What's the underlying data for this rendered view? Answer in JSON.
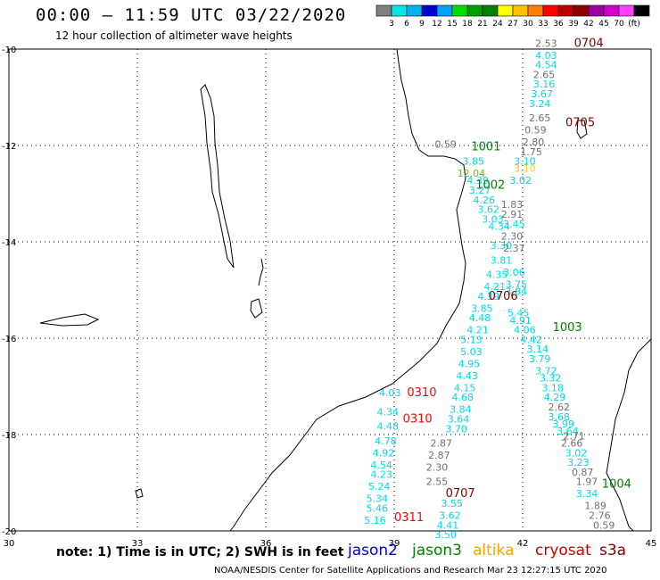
{
  "title": "00:00 – 11:59 UTC 03/22/2020",
  "subtitle": "12 hour collection of altimeter wave heights",
  "colorbar": {
    "colors": [
      "#808080",
      "#00e5e5",
      "#00b4f0",
      "#0000d0",
      "#00a0ff",
      "#00e000",
      "#00a000",
      "#008000",
      "#ffff00",
      "#ffc000",
      "#ff8000",
      "#ff0000",
      "#c00000",
      "#900000",
      "#a000a0",
      "#d000d0",
      "#ff40ff",
      "#000000"
    ],
    "labels": [
      "3",
      "6",
      "9",
      "12",
      "15",
      "18",
      "21",
      "24",
      "27",
      "30",
      "33",
      "36",
      "39",
      "42",
      "45",
      "70",
      "(ft)"
    ]
  },
  "axes": {
    "lon_ticks": [
      "30",
      "33",
      "36",
      "39",
      "42",
      "45"
    ],
    "lat_ticks": [
      "-10",
      "-12",
      "-14",
      "-16",
      "-18",
      "-20"
    ]
  },
  "legend": {
    "note": "note: 1) Time is in UTC; 2) SWH is in feet",
    "jason2": "jason2",
    "jason3": "jason3",
    "altika": "altika",
    "cryosat": "cryosat",
    "s3a": "s3a",
    "colors": {
      "jason2": "#0000d0",
      "jason3": "#008000",
      "altika": "#ffa000",
      "cryosat": "#cc0000",
      "s3a": "#800000"
    }
  },
  "credit": "NOAA/NESDIS Center for Satellite Applications and Research    Mar 23 12:27:15 UTC 2020",
  "passes": [
    {
      "label": "0704",
      "color": "#800000",
      "lon": 43.2,
      "lat": -9.95
    },
    {
      "label": "0705",
      "color": "#800000",
      "lon": 43.0,
      "lat": -11.6
    },
    {
      "label": "1001",
      "color": "#008000",
      "lon": 40.8,
      "lat": -12.1
    },
    {
      "label": "1002",
      "color": "#008000",
      "lon": 40.9,
      "lat": -12.9
    },
    {
      "label": "0706",
      "color": "#800000",
      "lon": 41.2,
      "lat": -15.2
    },
    {
      "label": "1003",
      "color": "#008000",
      "lon": 42.7,
      "lat": -15.85
    },
    {
      "label": "0310",
      "color": "#ff0000",
      "lon": 39.3,
      "lat": -17.2
    },
    {
      "label": "0310",
      "color": "#ff0000",
      "lon": 39.2,
      "lat": -17.75
    },
    {
      "label": "0707",
      "color": "#800000",
      "lon": 40.2,
      "lat": -19.3
    },
    {
      "label": "1004",
      "color": "#008000",
      "lon": 43.85,
      "lat": -19.1
    },
    {
      "label": "0311",
      "color": "#ff0000",
      "lon": 39.0,
      "lat": -19.8
    }
  ],
  "tracks": [
    {
      "id": "track-a",
      "color": "#00d8e8",
      "points": [
        {
          "v": "4.03",
          "lon": 42.55,
          "lat": -10.2
        },
        {
          "v": "4.54",
          "lon": 42.55,
          "lat": -10.4
        },
        {
          "v": "3.16",
          "lon": 42.5,
          "lat": -10.8
        },
        {
          "v": "3.67",
          "lon": 42.45,
          "lat": -11.0
        },
        {
          "v": "3.24",
          "lon": 42.4,
          "lat": -11.2
        },
        {
          "v": "3.10",
          "lon": 42.05,
          "lat": -12.4
        },
        {
          "v": "3.02",
          "lon": 41.95,
          "lat": -12.8
        },
        {
          "v": "3.45",
          "lon": 41.8,
          "lat": -13.7
        },
        {
          "v": "3.06",
          "lon": 41.8,
          "lat": -14.7
        },
        {
          "v": "3.75",
          "lon": 41.85,
          "lat": -14.95
        },
        {
          "v": "3.84",
          "lon": 41.85,
          "lat": -15.1
        },
        {
          "v": "5.45",
          "lon": 41.9,
          "lat": -15.55
        },
        {
          "v": "4.91",
          "lon": 41.95,
          "lat": -15.7
        },
        {
          "v": "4.06",
          "lon": 42.05,
          "lat": -15.9
        },
        {
          "v": "4.42",
          "lon": 42.2,
          "lat": -16.1
        },
        {
          "v": "3.14",
          "lon": 42.35,
          "lat": -16.3
        },
        {
          "v": "3.79",
          "lon": 42.4,
          "lat": -16.5
        },
        {
          "v": "3.72",
          "lon": 42.55,
          "lat": -16.75
        },
        {
          "v": "3.32",
          "lon": 42.65,
          "lat": -16.9
        },
        {
          "v": "3.18",
          "lon": 42.7,
          "lat": -17.1
        },
        {
          "v": "4.29",
          "lon": 42.75,
          "lat": -17.3
        },
        {
          "v": "3.68",
          "lon": 42.85,
          "lat": -17.7
        },
        {
          "v": "3.99",
          "lon": 42.95,
          "lat": -17.85
        },
        {
          "v": "3.64",
          "lon": 43.05,
          "lat": -18.0
        },
        {
          "v": "3.02",
          "lon": 43.25,
          "lat": -18.45
        },
        {
          "v": "3.23",
          "lon": 43.3,
          "lat": -18.65
        },
        {
          "v": "3.34",
          "lon": 43.5,
          "lat": -19.3
        }
      ]
    },
    {
      "id": "track-b",
      "color": "#00d8e8",
      "points": [
        {
          "v": "3.85",
          "lon": 40.85,
          "lat": -12.4
        },
        {
          "v": "4.39",
          "lon": 40.95,
          "lat": -12.8
        },
        {
          "v": "3.27",
          "lon": 41.0,
          "lat": -13.0
        },
        {
          "v": "4.26",
          "lon": 41.1,
          "lat": -13.2
        },
        {
          "v": "3.62",
          "lon": 41.2,
          "lat": -13.4
        },
        {
          "v": "3.03",
          "lon": 41.3,
          "lat": -13.6
        },
        {
          "v": "4.34",
          "lon": 41.45,
          "lat": -13.75
        },
        {
          "v": "3.30",
          "lon": 41.5,
          "lat": -14.15
        },
        {
          "v": "3.81",
          "lon": 41.5,
          "lat": -14.45
        },
        {
          "v": "4.35",
          "lon": 41.4,
          "lat": -14.75
        },
        {
          "v": "4.21",
          "lon": 41.35,
          "lat": -15.0
        },
        {
          "v": "4.39",
          "lon": 41.2,
          "lat": -15.2
        },
        {
          "v": "3.85",
          "lon": 41.05,
          "lat": -15.45
        },
        {
          "v": "4.48",
          "lon": 41.0,
          "lat": -15.65
        },
        {
          "v": "4.21",
          "lon": 40.95,
          "lat": -15.9
        },
        {
          "v": "5.13",
          "lon": 40.8,
          "lat": -16.1
        },
        {
          "v": "5.03",
          "lon": 40.8,
          "lat": -16.35
        },
        {
          "v": "4.95",
          "lon": 40.75,
          "lat": -16.6
        },
        {
          "v": "4.43",
          "lon": 40.7,
          "lat": -16.85
        },
        {
          "v": "4.15",
          "lon": 40.65,
          "lat": -17.1
        },
        {
          "v": "4.68",
          "lon": 40.6,
          "lat": -17.3
        },
        {
          "v": "3.84",
          "lon": 40.55,
          "lat": -17.55
        },
        {
          "v": "3.64",
          "lon": 40.5,
          "lat": -17.75
        },
        {
          "v": "3.70",
          "lon": 40.45,
          "lat": -17.95
        },
        {
          "v": "3.55",
          "lon": 40.35,
          "lat": -19.5
        },
        {
          "v": "3.62",
          "lon": 40.3,
          "lat": -19.75
        },
        {
          "v": "4.41",
          "lon": 40.25,
          "lat": -19.95
        },
        {
          "v": "3.50",
          "lon": 40.2,
          "lat": -20.15
        }
      ]
    },
    {
      "id": "track-c",
      "color": "#00d8e8",
      "points": [
        {
          "v": "4.03",
          "lon": 38.9,
          "lat": -17.2
        },
        {
          "v": "4.34",
          "lon": 38.85,
          "lat": -17.6
        },
        {
          "v": "4.48",
          "lon": 38.85,
          "lat": -17.9
        },
        {
          "v": "4.78",
          "lon": 38.8,
          "lat": -18.2
        },
        {
          "v": "4.92",
          "lon": 38.75,
          "lat": -18.45
        },
        {
          "v": "4.54",
          "lon": 38.7,
          "lat": -18.7
        },
        {
          "v": "4.23",
          "lon": 38.7,
          "lat": -18.9
        },
        {
          "v": "5.24",
          "lon": 38.65,
          "lat": -19.15
        },
        {
          "v": "5.34",
          "lon": 38.6,
          "lat": -19.4
        },
        {
          "v": "5.46",
          "lon": 38.6,
          "lat": -19.6
        },
        {
          "v": "5.16",
          "lon": 38.55,
          "lat": -19.85
        }
      ]
    },
    {
      "id": "track-d",
      "color": "#707070",
      "points": [
        {
          "v": "2.53",
          "lon": 42.55,
          "lat": -9.95
        },
        {
          "v": "2.65",
          "lon": 42.5,
          "lat": -10.6
        },
        {
          "v": "2.65",
          "lon": 42.4,
          "lat": -11.5
        },
        {
          "v": "0.59",
          "lon": 42.3,
          "lat": -11.75
        },
        {
          "v": "2.80",
          "lon": 42.25,
          "lat": -12.0
        },
        {
          "v": "1.75",
          "lon": 42.2,
          "lat": -12.2
        },
        {
          "v": "1.83",
          "lon": 41.75,
          "lat": -13.3
        },
        {
          "v": "2.91",
          "lon": 41.75,
          "lat": -13.5
        },
        {
          "v": "2.30",
          "lon": 41.75,
          "lat": -13.95
        },
        {
          "v": "2.37",
          "lon": 41.8,
          "lat": -14.2
        },
        {
          "v": "2.62",
          "lon": 42.85,
          "lat": -17.5
        },
        {
          "v": "2.66",
          "lon": 43.15,
          "lat": -18.25
        },
        {
          "v": "2.71",
          "lon": 43.2,
          "lat": -18.1
        },
        {
          "v": "0.87",
          "lon": 43.4,
          "lat": -18.85
        },
        {
          "v": "1.97",
          "lon": 43.5,
          "lat": -19.05
        },
        {
          "v": "1.89",
          "lon": 43.7,
          "lat": -19.55
        },
        {
          "v": "2.76",
          "lon": 43.8,
          "lat": -19.75
        },
        {
          "v": "0.59",
          "lon": 43.9,
          "lat": -19.95
        }
      ]
    },
    {
      "id": "track-e",
      "color": "#707070",
      "points": [
        {
          "v": "0.59",
          "lon": 40.2,
          "lat": -12.05
        },
        {
          "v": "2.87",
          "lon": 40.1,
          "lat": -18.25
        },
        {
          "v": "2.87",
          "lon": 40.05,
          "lat": -18.5
        },
        {
          "v": "2.30",
          "lon": 40.0,
          "lat": -18.75
        },
        {
          "v": "2.55",
          "lon": 40.0,
          "lat": -19.05
        }
      ]
    },
    {
      "id": "track-f",
      "color": "#66c000",
      "points": [
        {
          "v": "12.04",
          "lon": 40.8,
          "lat": -12.65
        }
      ]
    },
    {
      "id": "track-g",
      "color": "#ffcc00",
      "points": [
        {
          "v": "3.10",
          "lon": 42.05,
          "lat": -12.55
        }
      ]
    }
  ]
}
